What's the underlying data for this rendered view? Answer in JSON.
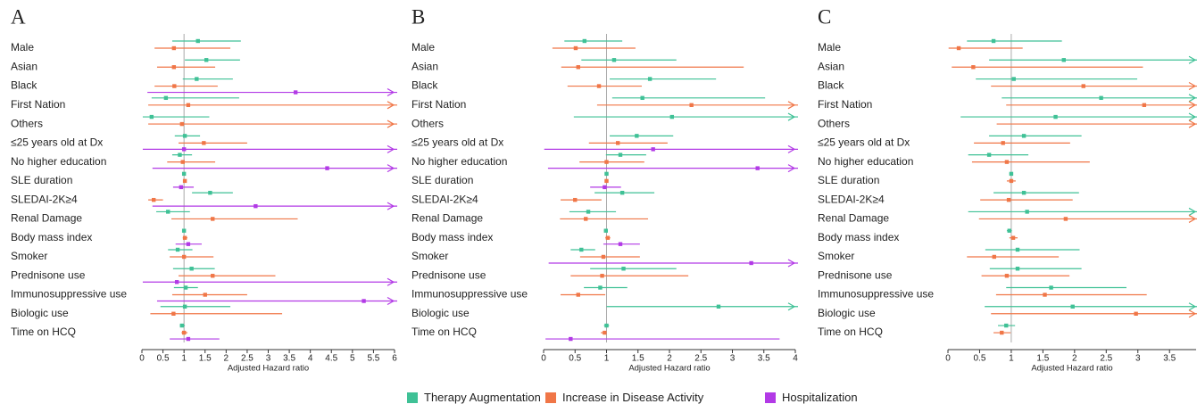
{
  "chart_data": [
    {
      "type": "forest",
      "panel": "A",
      "xlabel": "Adjusted Hazard ratio",
      "categories": [
        "Male",
        "Asian",
        "Black",
        "First Nation",
        "Others",
        "≤25 years old at Dx",
        "No higher education",
        "SLE duration",
        "SLEDAI-2K≥4",
        "Renal Damage",
        "Body mass index",
        "Smoker",
        "Prednisone use",
        "Immunosuppressive use",
        "Biologic use",
        "Time on HCQ"
      ],
      "xlim": [
        0,
        6
      ],
      "xticks": [
        0,
        0.5,
        1,
        1.5,
        2,
        2.5,
        3,
        3.5,
        4,
        4.5,
        5,
        5.5,
        6
      ],
      "series": [
        {
          "name": "Therapy Augmentation",
          "color": "#3fc196",
          "values": [
            1.33,
            1.53,
            1.3,
            0.57,
            0.23,
            1.02,
            0.9,
            1.0,
            1.62,
            0.62,
            1.0,
            0.85,
            1.18,
            1.04,
            1.02,
            0.95
          ],
          "lower": [
            0.72,
            1.02,
            0.97,
            0.23,
            0.02,
            0.78,
            0.72,
            0.97,
            1.19,
            0.34,
            0.97,
            0.62,
            0.74,
            0.76,
            0.44,
            0.9
          ],
          "upper": [
            2.35,
            2.33,
            2.16,
            2.31,
            1.6,
            1.38,
            1.19,
            1.03,
            2.16,
            1.14,
            1.04,
            1.2,
            1.73,
            1.33,
            2.1,
            1.02
          ]
        },
        {
          "name": "Increase in Disease Activity",
          "color": "#f07647",
          "values": [
            0.76,
            0.76,
            0.77,
            1.1,
            0.95,
            1.47,
            0.97,
            1.02,
            0.28,
            1.68,
            1.02,
            1.0,
            1.68,
            1.5,
            0.75,
            1.0
          ],
          "lower": [
            0.3,
            0.36,
            0.3,
            0.15,
            0.15,
            0.87,
            0.6,
            0.98,
            0.15,
            0.7,
            0.97,
            0.66,
            0.87,
            0.72,
            0.2,
            0.94
          ],
          "upper": [
            2.1,
            1.74,
            1.8,
            7,
            7,
            2.5,
            1.74,
            1.06,
            0.5,
            3.7,
            1.08,
            1.7,
            3.17,
            2.5,
            3.33,
            1.08
          ]
        },
        {
          "name": "Hospitalization",
          "color": "#b23ae6",
          "values": [
            null,
            null,
            3.65,
            null,
            null,
            1.0,
            4.4,
            0.93,
            2.7,
            null,
            1.1,
            null,
            0.83,
            5.27,
            null,
            1.1
          ],
          "lower": [
            null,
            null,
            0.13,
            null,
            null,
            0.02,
            0.25,
            0.74,
            0.25,
            null,
            0.8,
            null,
            0.02,
            0.36,
            null,
            0.66
          ],
          "upper": [
            null,
            null,
            8,
            null,
            null,
            7,
            9,
            1.23,
            8,
            null,
            1.42,
            null,
            8,
            10,
            null,
            1.84
          ]
        }
      ]
    },
    {
      "type": "forest",
      "panel": "B",
      "xlabel": "Adjusted Hazard ratio",
      "categories": [
        "Male",
        "Asian",
        "Black",
        "First Nation",
        "Others",
        "≤25 years old at Dx",
        "No higher education",
        "SLE duration",
        "SLEDAI-2K≥4",
        "Renal Damage",
        "Body mass index",
        "Smoker",
        "Prednisone use",
        "Immunosuppressive use",
        "Biologic use",
        "Time on HCQ"
      ],
      "xlim": [
        0,
        4
      ],
      "xticks": [
        0,
        0.5,
        1,
        1.5,
        2,
        2.5,
        3,
        3.5,
        4
      ],
      "series": [
        {
          "color": "#3fc196",
          "values": [
            0.65,
            1.12,
            1.69,
            1.57,
            2.04,
            1.48,
            1.22,
            1.0,
            1.25,
            0.71,
            0.99,
            0.6,
            1.27,
            0.9,
            2.78,
            1.0
          ],
          "lower": [
            0.33,
            0.6,
            1.05,
            1.09,
            0.48,
            1.05,
            0.99,
            0.97,
            0.81,
            0.41,
            0.96,
            0.43,
            0.74,
            0.64,
            1.0,
            0.96
          ],
          "upper": [
            1.25,
            2.11,
            2.74,
            3.52,
            6,
            2.06,
            1.63,
            1.03,
            1.76,
            1.15,
            1.02,
            0.82,
            2.11,
            1.33,
            6,
            1.04
          ]
        },
        {
          "color": "#f07647",
          "values": [
            0.51,
            0.55,
            0.88,
            2.35,
            null,
            1.18,
            1.0,
            1.0,
            0.5,
            0.67,
            1.02,
            0.95,
            0.93,
            0.55,
            null,
            0.97
          ],
          "lower": [
            0.14,
            0.28,
            0.38,
            0.85,
            null,
            0.72,
            0.57,
            0.97,
            0.27,
            0.26,
            0.98,
            0.58,
            0.43,
            0.27,
            null,
            0.91
          ],
          "upper": [
            1.46,
            3.18,
            1.56,
            6,
            null,
            1.97,
            1.6,
            1.03,
            0.92,
            1.66,
            1.06,
            1.53,
            2.3,
            0.98,
            null,
            1.0
          ]
        },
        {
          "color": "#b23ae6",
          "values": [
            null,
            null,
            null,
            null,
            null,
            1.74,
            3.4,
            0.97,
            null,
            null,
            1.22,
            3.3,
            null,
            null,
            null,
            0.43
          ],
          "lower": [
            null,
            null,
            null,
            null,
            null,
            0.01,
            0.07,
            0.74,
            null,
            null,
            0.95,
            0.08,
            null,
            null,
            null,
            0.03
          ],
          "upper": [
            null,
            null,
            null,
            null,
            null,
            6,
            6,
            1.23,
            null,
            null,
            1.53,
            6,
            null,
            null,
            null,
            3.75
          ]
        }
      ]
    },
    {
      "type": "forest",
      "panel": "C",
      "xlabel": "Adjusted Hazard ratio",
      "categories": [
        "Male",
        "Asian",
        "Black",
        "First Nation",
        "Others",
        "≤25 years old at Dx",
        "No higher education",
        "SLE duration",
        "SLEDAI-2K≥4",
        "Renal Damage",
        "Body mass index",
        "Smoker",
        "Prednisone use",
        "Immunosuppressive use",
        "Biologic use",
        "Time on HCQ"
      ],
      "xlim": [
        0,
        3.92
      ],
      "xticks": [
        0,
        0.5,
        1,
        1.5,
        2,
        2.5,
        3,
        3.5
      ],
      "series": [
        {
          "color": "#3fc196",
          "values": [
            0.72,
            1.83,
            1.04,
            2.42,
            1.7,
            1.2,
            0.65,
            1.0,
            1.2,
            1.25,
            0.97,
            1.1,
            1.1,
            1.63,
            1.97,
            0.92
          ],
          "lower": [
            0.3,
            0.65,
            0.44,
            0.85,
            0.2,
            0.65,
            0.32,
            0.97,
            0.72,
            0.32,
            0.93,
            0.59,
            0.66,
            0.92,
            0.58,
            0.79
          ],
          "upper": [
            1.8,
            5,
            2.99,
            5,
            5,
            2.11,
            1.27,
            1.03,
            2.07,
            5,
            1.01,
            2.08,
            2.11,
            2.82,
            5,
            1.06
          ]
        },
        {
          "color": "#f07647",
          "values": [
            0.17,
            0.4,
            2.14,
            3.1,
            4.2,
            0.87,
            0.93,
            1.0,
            0.96,
            1.86,
            1.03,
            0.73,
            0.93,
            1.53,
            2.97,
            0.85
          ],
          "lower": [
            0.01,
            0.06,
            0.68,
            0.92,
            0.77,
            0.41,
            0.38,
            0.93,
            0.51,
            0.49,
            0.97,
            0.3,
            0.53,
            0.76,
            0.68,
            0.72
          ],
          "upper": [
            1.18,
            3.08,
            5,
            6,
            9,
            1.93,
            2.24,
            1.07,
            1.97,
            5,
            1.1,
            1.75,
            1.92,
            3.14,
            6,
            0.99
          ]
        }
      ]
    }
  ]
}
